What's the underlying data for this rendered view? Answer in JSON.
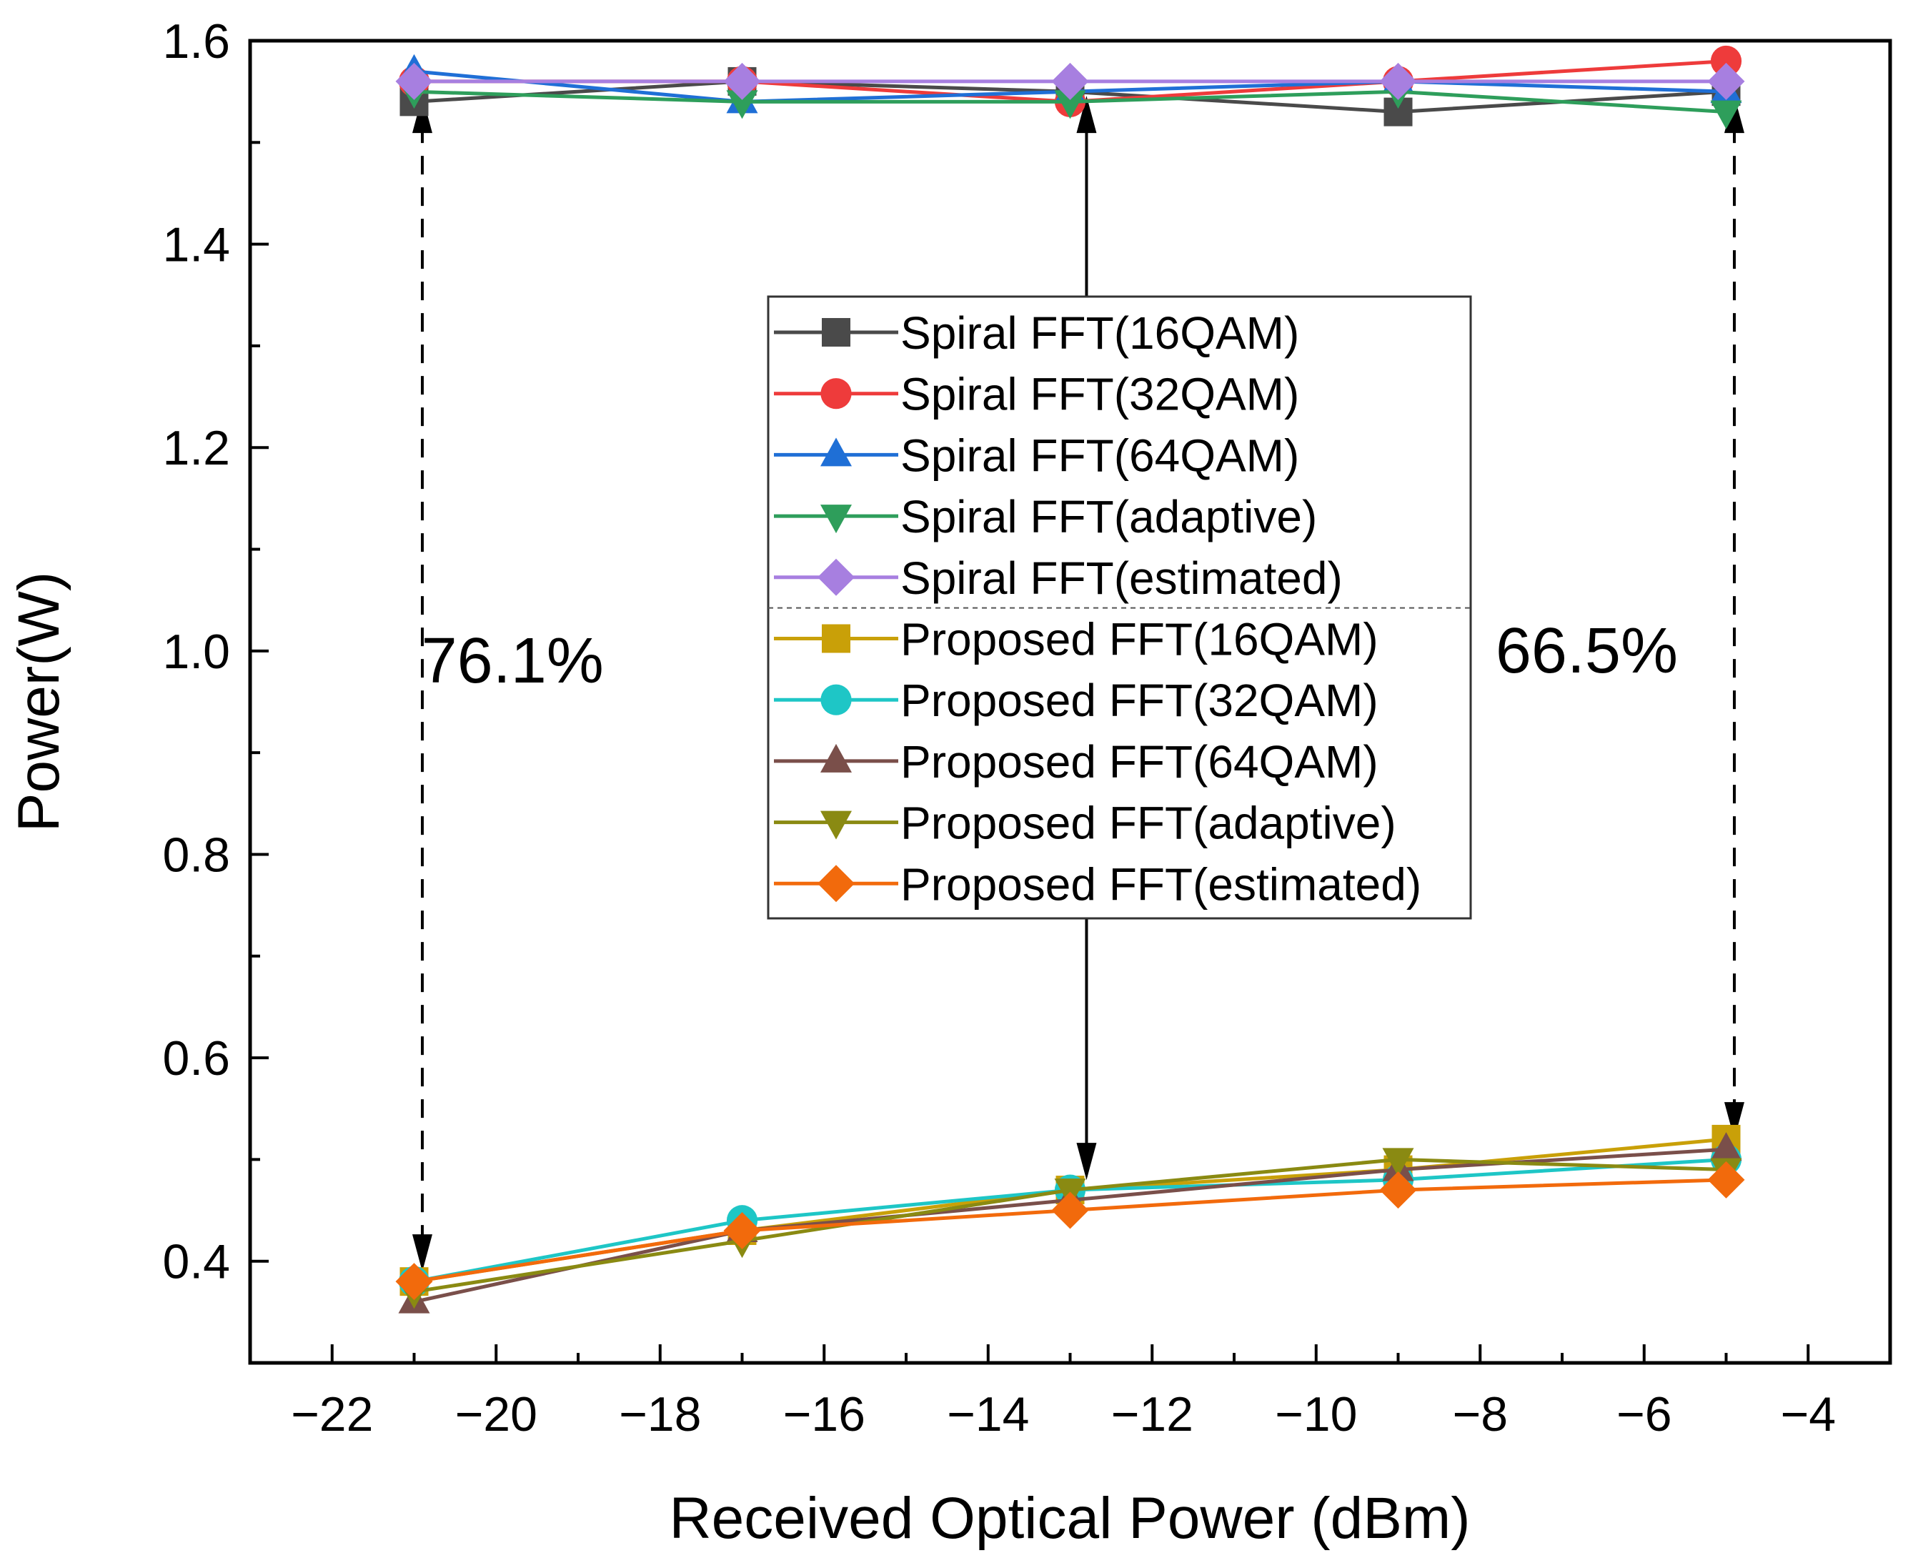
{
  "chart_data": {
    "type": "line",
    "xlabel": "Received Optical Power (dBm)",
    "ylabel": "Power(W)",
    "xlim": [
      -23,
      -3
    ],
    "ylim": [
      0.3,
      1.6
    ],
    "xticks": [
      -22,
      -20,
      -18,
      -16,
      -14,
      -12,
      -10,
      -8,
      -6,
      -4
    ],
    "xtick_labels": [
      "−22",
      "−20",
      "−18",
      "−16",
      "−14",
      "−12",
      "−10",
      "−8",
      "−6",
      "−4"
    ],
    "yticks": [
      0.4,
      0.6,
      0.8,
      1.0,
      1.2,
      1.4,
      1.6
    ],
    "ytick_labels": [
      "0.4",
      "0.6",
      "0.8",
      "1.0",
      "1.2",
      "1.4",
      "1.6"
    ],
    "x": [
      -21,
      -17,
      -13,
      -9,
      -5
    ],
    "series": [
      {
        "name": "Spiral FFT(16QAM)",
        "marker": "square",
        "color": "#4a4a4a",
        "values": [
          1.54,
          1.56,
          1.55,
          1.53,
          1.55
        ]
      },
      {
        "name": "Spiral FFT(32QAM)",
        "marker": "circle",
        "color": "#ee3b3b",
        "values": [
          1.56,
          1.56,
          1.54,
          1.56,
          1.58
        ]
      },
      {
        "name": "Spiral FFT(64QAM)",
        "marker": "triangle-up",
        "color": "#1f6fd6",
        "values": [
          1.57,
          1.54,
          1.55,
          1.56,
          1.55
        ]
      },
      {
        "name": "Spiral FFT(adaptive)",
        "marker": "triangle-down",
        "color": "#2e9e5b",
        "values": [
          1.55,
          1.54,
          1.54,
          1.55,
          1.53
        ]
      },
      {
        "name": "Spiral FFT(estimated)",
        "marker": "diamond",
        "color": "#a77fe0",
        "values": [
          1.56,
          1.56,
          1.56,
          1.56,
          1.56
        ]
      },
      {
        "name": "Proposed FFT(16QAM)",
        "marker": "square",
        "color": "#c9a008",
        "values": [
          0.38,
          0.43,
          0.47,
          0.49,
          0.52
        ]
      },
      {
        "name": "Proposed FFT(32QAM)",
        "marker": "circle",
        "color": "#1ec6c6",
        "values": [
          0.38,
          0.44,
          0.47,
          0.48,
          0.5
        ]
      },
      {
        "name": "Proposed FFT(64QAM)",
        "marker": "triangle-up",
        "color": "#7a4f4a",
        "values": [
          0.36,
          0.43,
          0.46,
          0.49,
          0.51
        ]
      },
      {
        "name": "Proposed FFT(adaptive)",
        "marker": "triangle-down",
        "color": "#8a8a12",
        "values": [
          0.37,
          0.42,
          0.47,
          0.5,
          0.49
        ]
      },
      {
        "name": "Proposed FFT(estimated)",
        "marker": "diamond",
        "color": "#f26a0c",
        "values": [
          0.38,
          0.43,
          0.45,
          0.47,
          0.48
        ]
      }
    ],
    "arrows": [
      {
        "x": -20.9,
        "y_from": 1.55,
        "y_to": 0.38,
        "style": "dashed",
        "direction": "both"
      },
      {
        "x": -12.8,
        "y_from": 1.55,
        "y_to": 0.47,
        "style": "solid",
        "direction": "both"
      },
      {
        "x": -4.9,
        "y_from": 1.55,
        "y_to": 0.51,
        "style": "dashed",
        "direction": "both"
      }
    ],
    "annotations": [
      {
        "text": "76.1%",
        "x": -19.8,
        "y": 0.99
      },
      {
        "text": "66.5%",
        "x": -6.7,
        "y": 1.0
      }
    ],
    "legend": {
      "position": "center",
      "separator_after": 5
    }
  }
}
